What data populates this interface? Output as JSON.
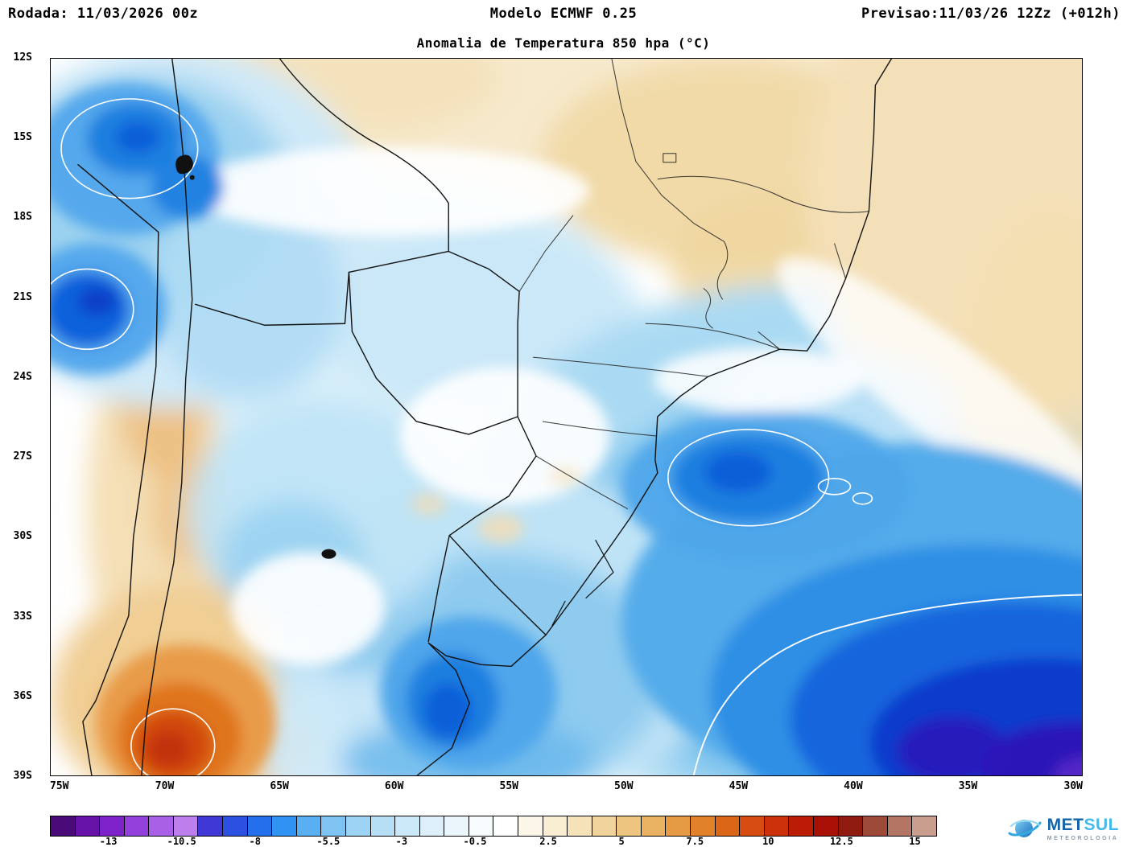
{
  "header": {
    "run_label": "Rodada: 11/03/2026 00z",
    "model_label": "Modelo ECMWF 0.25",
    "forecast_label": "Previsao:11/03/26 12Zz (+012h)"
  },
  "title": {
    "text": "Anomalia de Temperatura 850 hpa (°C)"
  },
  "map": {
    "lat_labels": [
      "12S",
      "15S",
      "18S",
      "21S",
      "24S",
      "27S",
      "30S",
      "33S",
      "36S",
      "39S"
    ],
    "lon_labels": [
      "75W",
      "70W",
      "65W",
      "60W",
      "55W",
      "50W",
      "45W",
      "40W",
      "35W",
      "30W"
    ]
  },
  "colorbar": {
    "ticks": [
      "-13",
      "-10.5",
      "-8",
      "-5.5",
      "-3",
      "-0.5",
      "2.5",
      "5",
      "7.5",
      "10",
      "12.5",
      "15"
    ],
    "colors": [
      "#4a0a78",
      "#6612a8",
      "#7e22cc",
      "#9440dc",
      "#a95fe6",
      "#bd7fec",
      "#4038d6",
      "#2b50e2",
      "#2470ec",
      "#2e93f2",
      "#58aff2",
      "#7fc3f2",
      "#9dd3f4",
      "#b6dff6",
      "#cbe8f8",
      "#dceffa",
      "#eaf5fc",
      "#f6fbfe",
      "#ffffff",
      "#fcf6e8",
      "#f9edd2",
      "#f5e2b8",
      "#f1d49c",
      "#edc480",
      "#e9b162",
      "#e59a44",
      "#e1812a",
      "#dc6618",
      "#d54b10",
      "#cb300a",
      "#bc1c06",
      "#a81006",
      "#8f1a10",
      "#9e4a38",
      "#b37564",
      "#c99e8e"
    ]
  },
  "logo": {
    "met": "MET",
    "sul": "SUL",
    "subtitle": "METEOROLOGIA"
  },
  "chart_data": {
    "type": "heatmap",
    "variable": "Anomalia de Temperatura 850 hpa (°C)",
    "model": "ECMWF 0.25",
    "run": "11/03/2026 00z",
    "valid": "11/03/26 12Z (+012h)",
    "lat_ticks": [
      "12S",
      "15S",
      "18S",
      "21S",
      "24S",
      "27S",
      "30S",
      "33S",
      "36S",
      "39S"
    ],
    "lon_ticks": [
      "75W",
      "70W",
      "65W",
      "60W",
      "55W",
      "50W",
      "45W",
      "40W",
      "35W",
      "30W"
    ],
    "scale_ticks_c": [
      -13,
      -10.5,
      -8,
      -5.5,
      -3,
      -0.5,
      2.5,
      5,
      7.5,
      10,
      12.5,
      15
    ],
    "notable_anomalies": [
      {
        "area": "Peru/Bolivia Andes (northwest)",
        "sign": "cold",
        "approx_value_c": -6
      },
      {
        "area": "Southwest Atlantic off southern Brazil (southeast corner)",
        "sign": "cold",
        "approx_value_c": -10
      },
      {
        "area": "Uruguay and Rio Grande do Sul",
        "sign": "cold",
        "approx_value_c": -5
      },
      {
        "area": "Ocean near 27S 46W",
        "sign": "cold",
        "approx_value_c": -6
      },
      {
        "area": "Central-west Argentina (Cuyo, ~37S 70W)",
        "sign": "warm",
        "approx_value_c": 8
      },
      {
        "area": "Central and eastern Brazil / top of map",
        "sign": "warm",
        "approx_value_c": 2
      },
      {
        "area": "Paraguay / central Brazil interior",
        "sign": "cold",
        "approx_value_c": -2
      }
    ]
  }
}
